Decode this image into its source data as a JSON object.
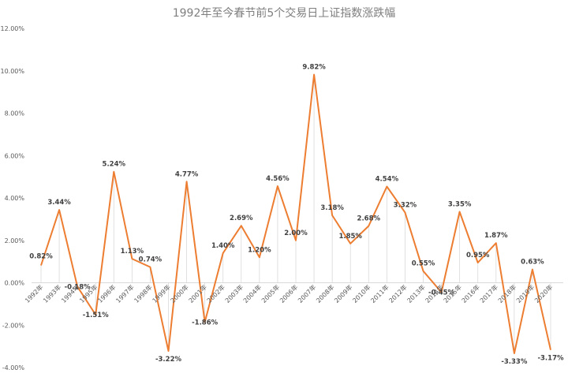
{
  "chart_data": {
    "type": "line",
    "title": "1992年至今春节前5个交易日上证指数涨跌幅",
    "xlabel": "",
    "ylabel": "",
    "categories": [
      "1992年",
      "1993年",
      "1994年",
      "1995年",
      "1996年",
      "1997年",
      "1998年",
      "1999年",
      "2000年",
      "2001年",
      "2002年",
      "2003年",
      "2004年",
      "2005年",
      "2006年",
      "2007年",
      "2008年",
      "2009年",
      "2010年",
      "2011年",
      "2012年",
      "2013年",
      "2014年",
      "2015年",
      "2016年",
      "2017年",
      "2018年",
      "2019年",
      "2020年"
    ],
    "values": [
      0.82,
      3.44,
      -0.18,
      -1.51,
      5.24,
      1.13,
      0.74,
      -3.22,
      4.77,
      -1.86,
      1.4,
      2.69,
      1.2,
      4.56,
      2.0,
      9.82,
      3.18,
      1.85,
      2.68,
      4.54,
      3.32,
      0.55,
      -0.45,
      3.35,
      0.95,
      1.87,
      -3.33,
      0.63,
      -3.17
    ],
    "data_labels": [
      "0.82%",
      "3.44%",
      "-0.18%",
      "-1.51%",
      "5.24%",
      "1.13%",
      "0.74%",
      "-3.22%",
      "4.77%",
      "-1.86%",
      "1.40%",
      "2.69%",
      "1.20%",
      "4.56%",
      "2.00%",
      "9.82%",
      "3.18%",
      "1.85%",
      "2.68%",
      "4.54%",
      "3.32%",
      "0.55%",
      "-0.45%",
      "3.35%",
      "0.95%",
      "1.87%",
      "-3.33%",
      "0.63%",
      "-3.17%"
    ],
    "ylim": [
      -4,
      12
    ],
    "yticks": [
      "12.00%",
      "10.00%",
      "8.00%",
      "6.00%",
      "4.00%",
      "2.00%",
      "0.00%",
      "-2.00%",
      "-4.00%"
    ],
    "ytick_values": [
      12,
      10,
      8,
      6,
      4,
      2,
      0,
      -2,
      -4
    ],
    "grid": false,
    "drop_lines": true,
    "legend": "none",
    "line_color": "#ED7D31"
  }
}
